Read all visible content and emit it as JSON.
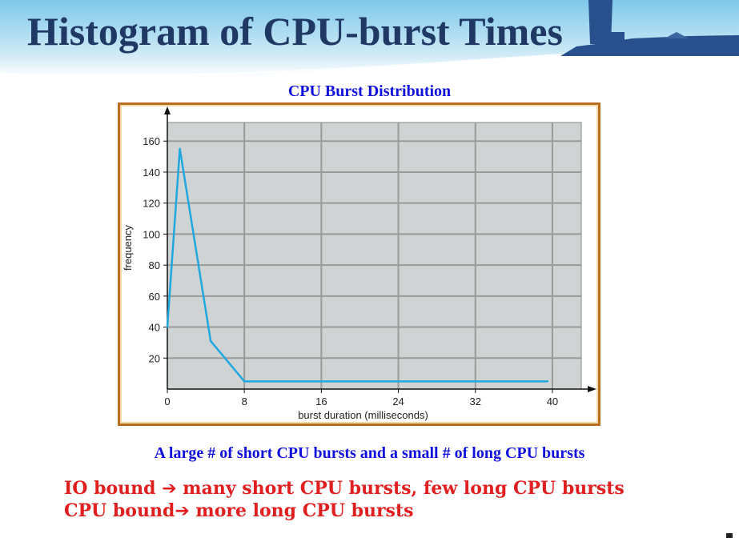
{
  "slide": {
    "title": "Histogram of CPU-burst Times",
    "caption": "A large # of short CPU bursts  and a small # of long CPU bursts",
    "note1": {
      "before": "IO bound ",
      "arrow": "➔",
      "after": " many short CPU bursts, few long CPU bursts"
    },
    "note2": {
      "before": "CPU bound",
      "arrow": "➔",
      "after": " more long CPU bursts"
    }
  },
  "colors": {
    "title": "#1f3864",
    "caption": "#1111dd",
    "notes": "#e02020",
    "frame": "#b86e1e",
    "plot_bg": "#d0d3d4",
    "grid": "#9a9a9a",
    "line": "#1fa8e0"
  },
  "chart_data": {
    "type": "line",
    "title": "CPU Burst Distribution",
    "xlabel": "burst duration (milliseconds)",
    "ylabel": "frequency",
    "xlim": [
      0,
      43
    ],
    "ylim": [
      0,
      172
    ],
    "xticks": [
      0,
      8,
      16,
      24,
      32,
      40
    ],
    "yticks": [
      20,
      40,
      60,
      80,
      100,
      120,
      140,
      160
    ],
    "grid": true,
    "series": [
      {
        "x": [
          0,
          1.3,
          4.5,
          8,
          39.5
        ],
        "y": [
          40,
          155,
          31,
          5,
          5
        ]
      }
    ]
  }
}
